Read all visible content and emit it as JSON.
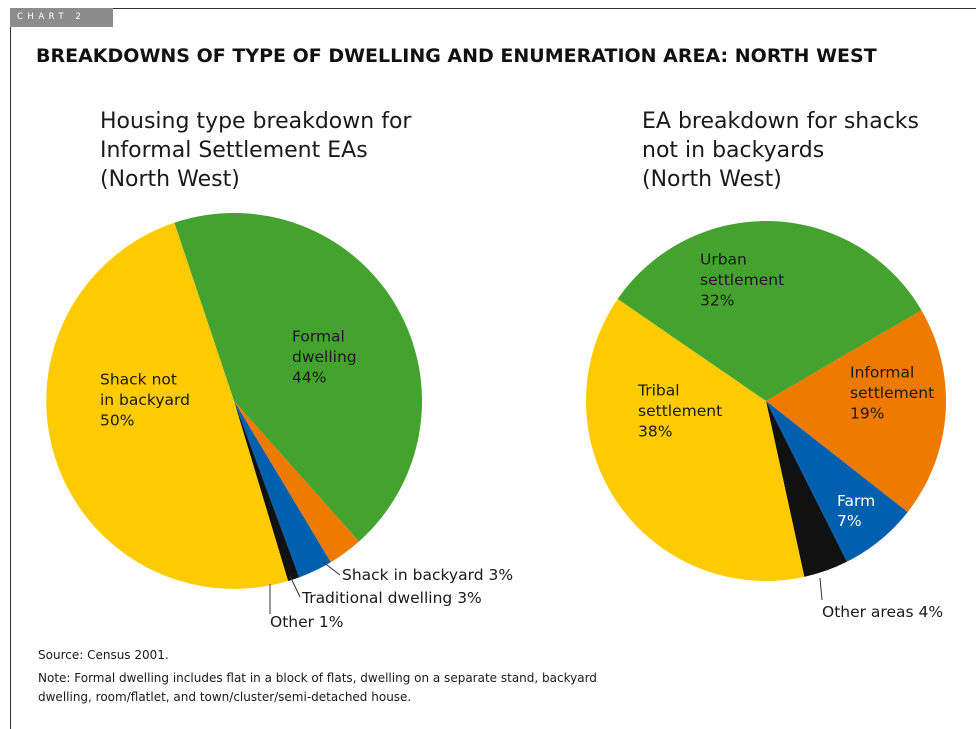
{
  "chart_label": "CHART 2",
  "title": "BREAKDOWNS OF TYPE OF DWELLING AND ENUMERATION AREA: NORTH WEST",
  "chart_data": [
    {
      "type": "pie",
      "title": "Housing type breakdown for Informal Settlement EAs (North West)",
      "title_lines": [
        "Housing type breakdown for",
        "Informal Settlement EAs",
        "(North West)"
      ],
      "slices": [
        {
          "label": "Formal dwelling",
          "label_lines": [
            "Formal",
            "dwelling"
          ],
          "value": 44,
          "value_text": "44%",
          "color": "#43a32e"
        },
        {
          "label": "Shack in backyard",
          "label_lines": [
            "Shack in backyard 3%"
          ],
          "value": 3,
          "value_text": "3%",
          "color": "#ee7a00"
        },
        {
          "label": "Traditional dwelling",
          "label_lines": [
            "Traditional dwelling 3%"
          ],
          "value": 3,
          "value_text": "3%",
          "color": "#0060ad"
        },
        {
          "label": "Other",
          "label_lines": [
            "Other 1%"
          ],
          "value": 1,
          "value_text": "1%",
          "color": "#111111"
        },
        {
          "label": "Shack not in backyard",
          "label_lines": [
            "Shack not",
            "in backyard"
          ],
          "value": 50,
          "value_text": "50%",
          "color": "#fecb00"
        }
      ]
    },
    {
      "type": "pie",
      "title": "EA breakdown for shacks not in backyards (North West)",
      "title_lines": [
        "EA breakdown for shacks",
        "not in backyards",
        "(North West)"
      ],
      "slices": [
        {
          "label": "Urban settlement",
          "label_lines": [
            "Urban",
            "settlement"
          ],
          "value": 32,
          "value_text": "32%",
          "color": "#43a32e"
        },
        {
          "label": "Informal settlement",
          "label_lines": [
            "Informal",
            "settlement"
          ],
          "value": 19,
          "value_text": "19%",
          "color": "#ee7a00"
        },
        {
          "label": "Farm",
          "label_lines": [
            "Farm"
          ],
          "value": 7,
          "value_text": "7%",
          "color": "#0060ad"
        },
        {
          "label": "Other areas",
          "label_lines": [
            "Other areas 4%"
          ],
          "value": 4,
          "value_text": "4%",
          "color": "#111111"
        },
        {
          "label": "Tribal settlement",
          "label_lines": [
            "Tribal",
            "settlement"
          ],
          "value": 38,
          "value_text": "38%",
          "color": "#fecb00"
        }
      ]
    }
  ],
  "source": "Source: Census 2001.",
  "note": "Note: Formal dwelling includes flat in a block of flats, dwelling on a separate stand, backyard dwelling, room/flatlet, and town/cluster/semi-detached house."
}
